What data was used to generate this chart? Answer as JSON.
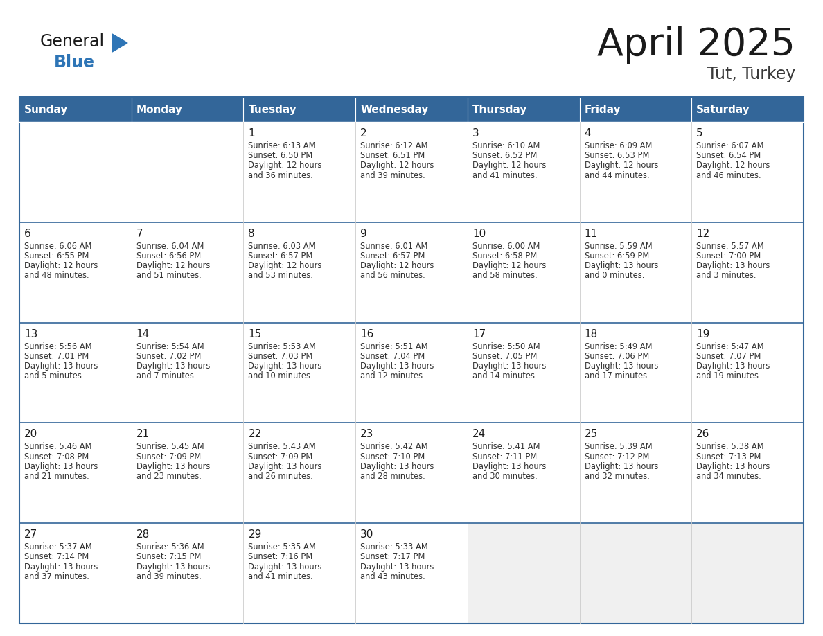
{
  "title": "April 2025",
  "subtitle": "Tut, Turkey",
  "header_bg": "#336699",
  "header_text_color": "#FFFFFF",
  "cell_bg": "#FFFFFF",
  "last_row_bg": "#F0F0F0",
  "border_color": "#336699",
  "row_divider_color": "#336699",
  "day_names": [
    "Sunday",
    "Monday",
    "Tuesday",
    "Wednesday",
    "Thursday",
    "Friday",
    "Saturday"
  ],
  "title_color": "#1a1a1a",
  "subtitle_color": "#3a3a3a",
  "number_color": "#1a1a1a",
  "text_color": "#333333",
  "general_color": "#1a1a1a",
  "blue_color": "#2E75B6",
  "triangle_color": "#2E75B6",
  "weeks": [
    [
      {
        "date": "",
        "sunrise": "",
        "sunset": "",
        "daylight": ""
      },
      {
        "date": "",
        "sunrise": "",
        "sunset": "",
        "daylight": ""
      },
      {
        "date": "1",
        "sunrise": "6:13 AM",
        "sunset": "6:50 PM",
        "daylight": "12 hours and 36 minutes."
      },
      {
        "date": "2",
        "sunrise": "6:12 AM",
        "sunset": "6:51 PM",
        "daylight": "12 hours and 39 minutes."
      },
      {
        "date": "3",
        "sunrise": "6:10 AM",
        "sunset": "6:52 PM",
        "daylight": "12 hours and 41 minutes."
      },
      {
        "date": "4",
        "sunrise": "6:09 AM",
        "sunset": "6:53 PM",
        "daylight": "12 hours and 44 minutes."
      },
      {
        "date": "5",
        "sunrise": "6:07 AM",
        "sunset": "6:54 PM",
        "daylight": "12 hours and 46 minutes."
      }
    ],
    [
      {
        "date": "6",
        "sunrise": "6:06 AM",
        "sunset": "6:55 PM",
        "daylight": "12 hours and 48 minutes."
      },
      {
        "date": "7",
        "sunrise": "6:04 AM",
        "sunset": "6:56 PM",
        "daylight": "12 hours and 51 minutes."
      },
      {
        "date": "8",
        "sunrise": "6:03 AM",
        "sunset": "6:57 PM",
        "daylight": "12 hours and 53 minutes."
      },
      {
        "date": "9",
        "sunrise": "6:01 AM",
        "sunset": "6:57 PM",
        "daylight": "12 hours and 56 minutes."
      },
      {
        "date": "10",
        "sunrise": "6:00 AM",
        "sunset": "6:58 PM",
        "daylight": "12 hours and 58 minutes."
      },
      {
        "date": "11",
        "sunrise": "5:59 AM",
        "sunset": "6:59 PM",
        "daylight": "13 hours and 0 minutes."
      },
      {
        "date": "12",
        "sunrise": "5:57 AM",
        "sunset": "7:00 PM",
        "daylight": "13 hours and 3 minutes."
      }
    ],
    [
      {
        "date": "13",
        "sunrise": "5:56 AM",
        "sunset": "7:01 PM",
        "daylight": "13 hours and 5 minutes."
      },
      {
        "date": "14",
        "sunrise": "5:54 AM",
        "sunset": "7:02 PM",
        "daylight": "13 hours and 7 minutes."
      },
      {
        "date": "15",
        "sunrise": "5:53 AM",
        "sunset": "7:03 PM",
        "daylight": "13 hours and 10 minutes."
      },
      {
        "date": "16",
        "sunrise": "5:51 AM",
        "sunset": "7:04 PM",
        "daylight": "13 hours and 12 minutes."
      },
      {
        "date": "17",
        "sunrise": "5:50 AM",
        "sunset": "7:05 PM",
        "daylight": "13 hours and 14 minutes."
      },
      {
        "date": "18",
        "sunrise": "5:49 AM",
        "sunset": "7:06 PM",
        "daylight": "13 hours and 17 minutes."
      },
      {
        "date": "19",
        "sunrise": "5:47 AM",
        "sunset": "7:07 PM",
        "daylight": "13 hours and 19 minutes."
      }
    ],
    [
      {
        "date": "20",
        "sunrise": "5:46 AM",
        "sunset": "7:08 PM",
        "daylight": "13 hours and 21 minutes."
      },
      {
        "date": "21",
        "sunrise": "5:45 AM",
        "sunset": "7:09 PM",
        "daylight": "13 hours and 23 minutes."
      },
      {
        "date": "22",
        "sunrise": "5:43 AM",
        "sunset": "7:09 PM",
        "daylight": "13 hours and 26 minutes."
      },
      {
        "date": "23",
        "sunrise": "5:42 AM",
        "sunset": "7:10 PM",
        "daylight": "13 hours and 28 minutes."
      },
      {
        "date": "24",
        "sunrise": "5:41 AM",
        "sunset": "7:11 PM",
        "daylight": "13 hours and 30 minutes."
      },
      {
        "date": "25",
        "sunrise": "5:39 AM",
        "sunset": "7:12 PM",
        "daylight": "13 hours and 32 minutes."
      },
      {
        "date": "26",
        "sunrise": "5:38 AM",
        "sunset": "7:13 PM",
        "daylight": "13 hours and 34 minutes."
      }
    ],
    [
      {
        "date": "27",
        "sunrise": "5:37 AM",
        "sunset": "7:14 PM",
        "daylight": "13 hours and 37 minutes."
      },
      {
        "date": "28",
        "sunrise": "5:36 AM",
        "sunset": "7:15 PM",
        "daylight": "13 hours and 39 minutes."
      },
      {
        "date": "29",
        "sunrise": "5:35 AM",
        "sunset": "7:16 PM",
        "daylight": "13 hours and 41 minutes."
      },
      {
        "date": "30",
        "sunrise": "5:33 AM",
        "sunset": "7:17 PM",
        "daylight": "13 hours and 43 minutes."
      },
      {
        "date": "",
        "sunrise": "",
        "sunset": "",
        "daylight": ""
      },
      {
        "date": "",
        "sunrise": "",
        "sunset": "",
        "daylight": ""
      },
      {
        "date": "",
        "sunrise": "",
        "sunset": "",
        "daylight": ""
      }
    ]
  ]
}
